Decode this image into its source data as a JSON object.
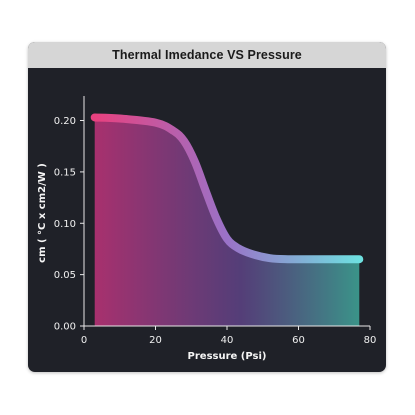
{
  "chart_data": {
    "type": "area",
    "title": "Thermal Imedance VS Pressure",
    "xlabel": "Pressure (Psi)",
    "ylabel": "cm ( °C x cm2/W )",
    "xlim": [
      0,
      80
    ],
    "ylim": [
      0,
      0.22
    ],
    "x_ticks": [
      "0",
      "20",
      "40",
      "60",
      "80"
    ],
    "y_ticks": [
      "0.00",
      "0.05",
      "0.10",
      "0.15",
      "0.20"
    ],
    "grid": false,
    "legend": "none",
    "series": [
      {
        "x": [
          3,
          10,
          20,
          25,
          28,
          31,
          34,
          37,
          40,
          43,
          47,
          52,
          57,
          62,
          67,
          72,
          77
        ],
        "y": [
          0.203,
          0.202,
          0.198,
          0.19,
          0.18,
          0.16,
          0.132,
          0.105,
          0.085,
          0.076,
          0.07,
          0.066,
          0.065,
          0.065,
          0.065,
          0.065,
          0.065
        ]
      }
    ],
    "colors": {
      "line_start": "#e8417f",
      "line_mid": "#9a72c8",
      "line_end": "#6ee0e0",
      "fill_start": "#c0337a",
      "fill_end": "#3fa89a",
      "background": "#1f2128",
      "title_bar": "#d6d6d6"
    }
  }
}
